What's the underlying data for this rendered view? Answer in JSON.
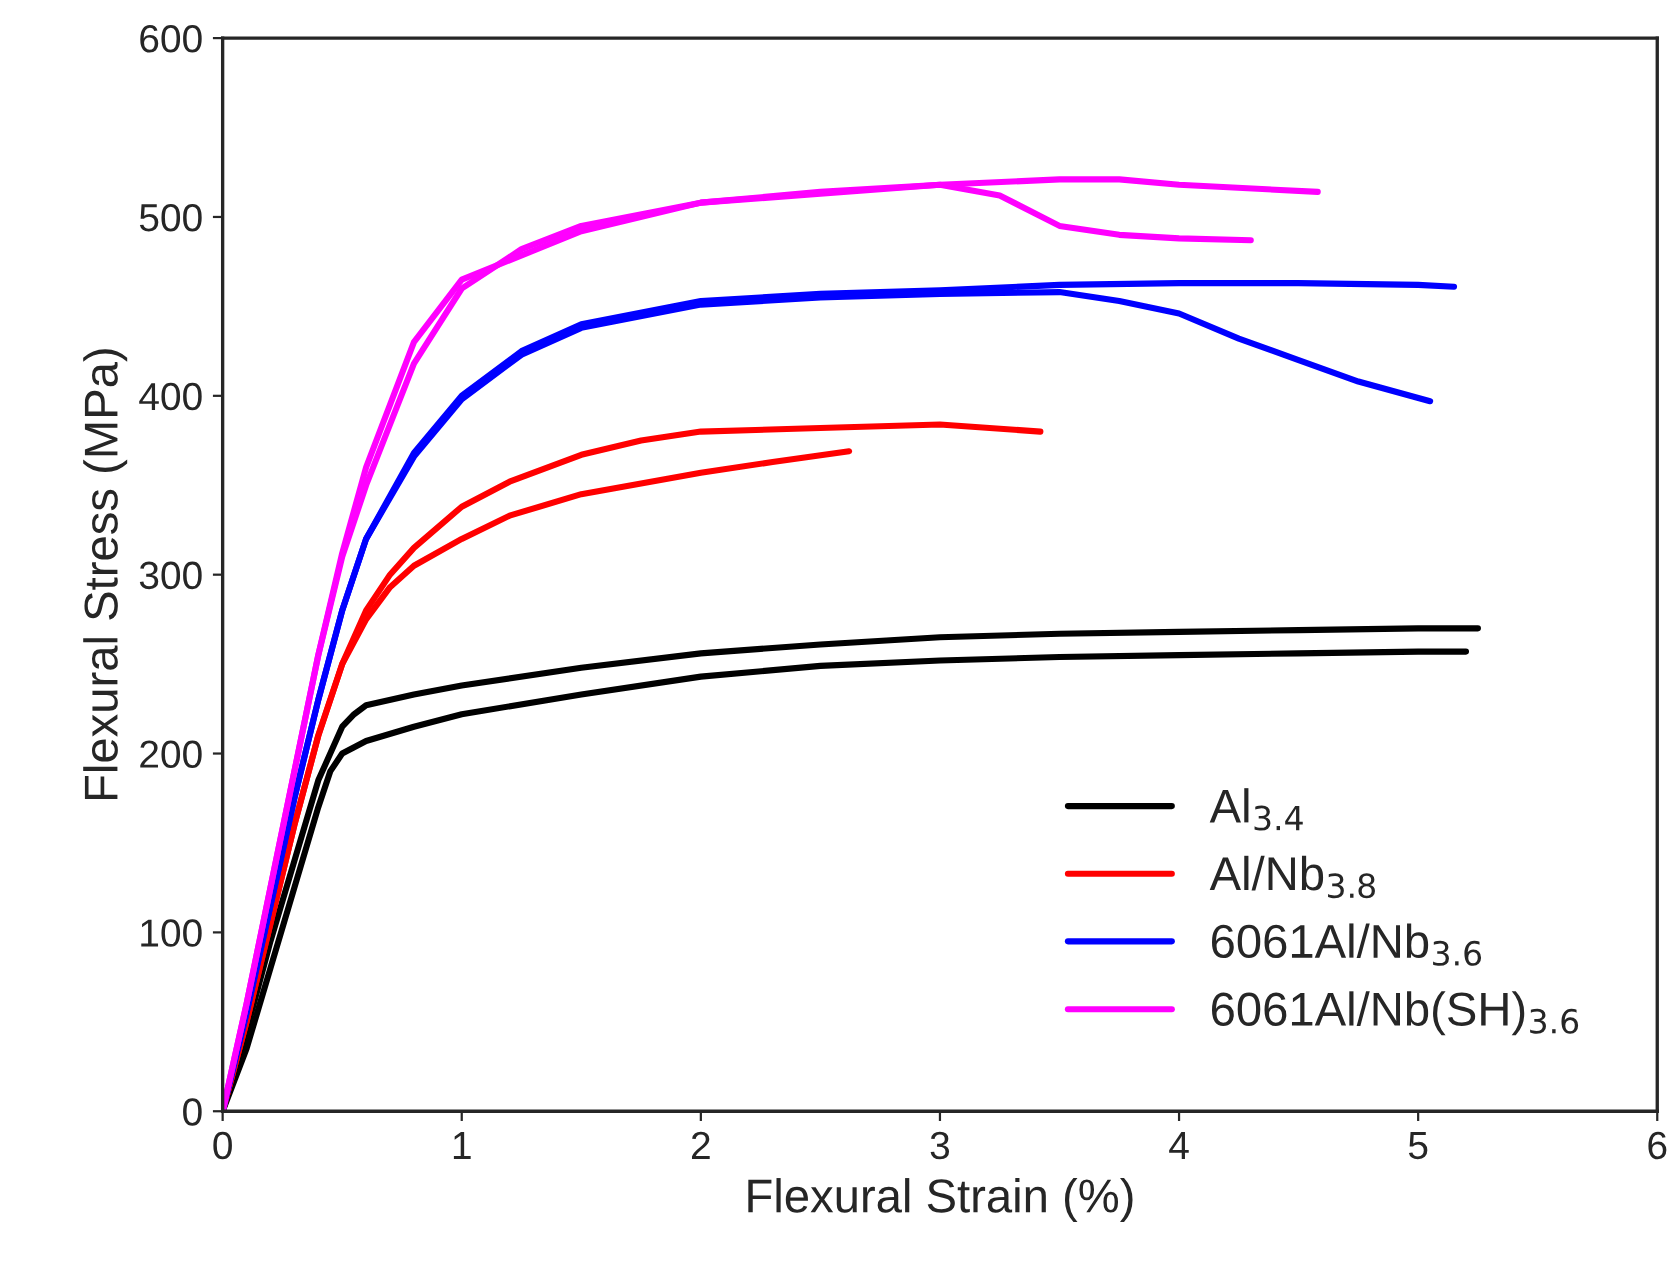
{
  "chart_data": {
    "type": "line",
    "xlabel": "Flexural Strain (%)",
    "ylabel": "Flexural Stress (MPa)",
    "xlim": [
      0,
      6
    ],
    "xticks": [
      0,
      1,
      2,
      3,
      4,
      5,
      6
    ],
    "ylim": [
      0,
      600
    ],
    "yticks": [
      0,
      100,
      200,
      300,
      400,
      500,
      600
    ],
    "grid": false,
    "legend": "bottom right",
    "marker": "none",
    "line_style": "solid",
    "series": [
      {
        "name": "Al$_{3.4}$",
        "color": "#000000",
        "x": [
          0,
          0.1,
          0.2,
          0.3,
          0.4,
          0.5,
          0.55,
          0.6,
          0.8,
          1,
          1.5,
          2,
          2.5,
          3,
          3.5,
          4,
          4.5,
          5,
          5.25
        ],
        "values": [
          0,
          45,
          95,
          140,
          185,
          215,
          222,
          227,
          233,
          238,
          248,
          256,
          261,
          265,
          267,
          268,
          269,
          270,
          270
        ]
      },
      {
        "color": "#000000",
        "x": [
          0,
          0.1,
          0.2,
          0.3,
          0.4,
          0.45,
          0.5,
          0.6,
          0.8,
          1,
          1.5,
          2,
          2.5,
          3,
          3.5,
          4,
          4.5,
          5,
          5.2
        ],
        "values": [
          0,
          35,
          80,
          125,
          170,
          190,
          200,
          207,
          215,
          222,
          233,
          243,
          249,
          252,
          254,
          255,
          256,
          257,
          257
        ]
      },
      {
        "name": "Al/Nb$_{3.8}$",
        "color": "#ff0000",
        "x": [
          0,
          0.1,
          0.2,
          0.3,
          0.4,
          0.5,
          0.6,
          0.7,
          0.8,
          1,
          1.2,
          1.5,
          1.75,
          2,
          2.5,
          3,
          3.42
        ],
        "values": [
          0,
          50,
          105,
          160,
          210,
          250,
          280,
          300,
          315,
          338,
          352,
          367,
          375,
          380,
          382,
          384,
          380
        ]
      },
      {
        "color": "#ff0000",
        "x": [
          0,
          0.1,
          0.2,
          0.3,
          0.4,
          0.5,
          0.6,
          0.7,
          0.8,
          1,
          1.2,
          1.5,
          2,
          2.3,
          2.62
        ],
        "values": [
          0,
          50,
          105,
          160,
          210,
          250,
          275,
          293,
          305,
          320,
          333,
          345,
          357,
          363,
          369
        ]
      },
      {
        "name": "6061Al/Nb$_{3.6}$",
        "color": "#0000ff",
        "x": [
          0,
          0.1,
          0.2,
          0.3,
          0.4,
          0.5,
          0.6,
          0.8,
          1,
          1.25,
          1.5,
          2,
          2.5,
          3,
          3.5,
          4,
          4.5,
          5,
          5.15
        ],
        "values": [
          0,
          55,
          115,
          175,
          230,
          280,
          320,
          368,
          400,
          425,
          440,
          453,
          457,
          459,
          462,
          463,
          463,
          462,
          461
        ]
      },
      {
        "color": "#0000ff",
        "x": [
          0,
          0.1,
          0.2,
          0.3,
          0.4,
          0.5,
          0.6,
          0.8,
          1,
          1.25,
          1.5,
          2,
          2.5,
          3,
          3.5,
          3.75,
          4,
          4.25,
          4.5,
          4.75,
          5.05
        ],
        "values": [
          0,
          55,
          115,
          175,
          230,
          280,
          320,
          366,
          398,
          423,
          438,
          451,
          455,
          457,
          458,
          453,
          446,
          432,
          420,
          408,
          397
        ]
      },
      {
        "name": "6061Al/Nb(SH)$_{3.6}$",
        "color": "#ff00ff",
        "x": [
          0,
          0.1,
          0.2,
          0.3,
          0.4,
          0.5,
          0.6,
          0.8,
          1,
          1.25,
          1.5,
          2,
          2.5,
          3,
          3.5,
          3.75,
          4,
          4.58
        ],
        "values": [
          0,
          60,
          125,
          190,
          255,
          310,
          350,
          418,
          460,
          482,
          495,
          508,
          513,
          518,
          521,
          521,
          518,
          514
        ]
      },
      {
        "color": "#ff00ff",
        "x": [
          0,
          0.1,
          0.2,
          0.3,
          0.4,
          0.5,
          0.6,
          0.8,
          1,
          1.5,
          2,
          2.5,
          3,
          3.25,
          3.5,
          3.75,
          4,
          4.3
        ],
        "values": [
          0,
          60,
          125,
          190,
          255,
          312,
          360,
          430,
          465,
          492,
          508,
          514,
          518,
          512,
          495,
          490,
          488,
          487
        ]
      }
    ]
  }
}
